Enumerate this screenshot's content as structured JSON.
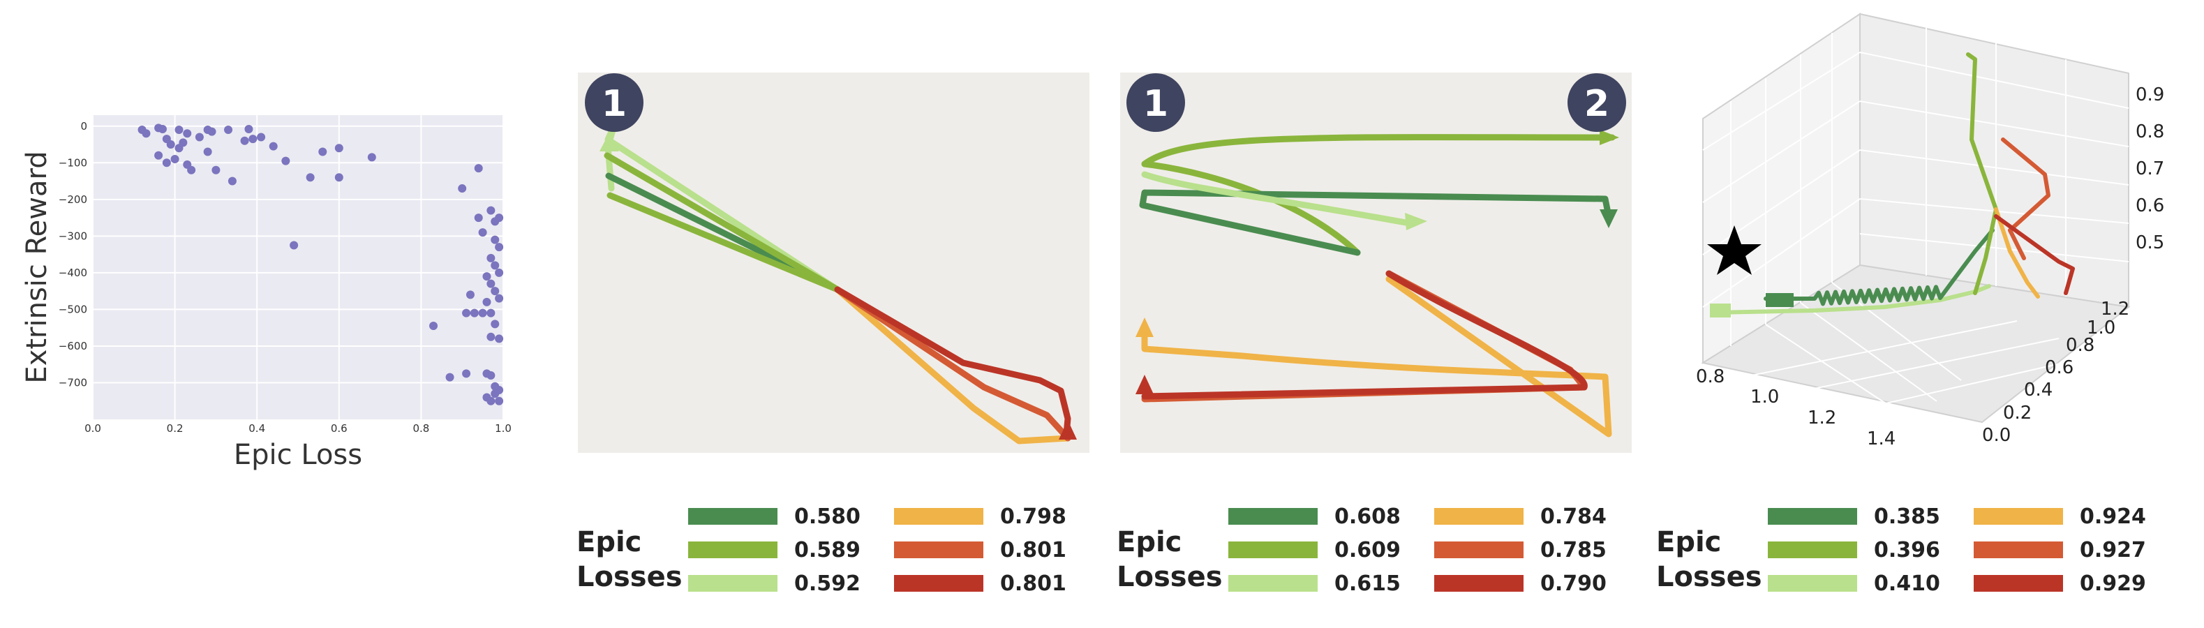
{
  "colors": {
    "plot_bg": "#eaeaf2",
    "panel_bg": "#efede9",
    "scatter_point": "#7b74be",
    "badge": "#3f4460",
    "palette": [
      "#4a8c50",
      "#8ab53c",
      "#b9e08c",
      "#f0b347",
      "#d45a34",
      "#bb3527"
    ]
  },
  "chart_data": [
    {
      "type": "scatter",
      "xlabel": "Epic Loss",
      "ylabel": "Extrinsic Reward",
      "xlim": [
        0.0,
        1.0
      ],
      "ylim": [
        -800,
        30
      ],
      "x_ticks": [
        "0.0",
        "0.2",
        "0.4",
        "0.6",
        "0.8",
        "1.0"
      ],
      "y_ticks": [
        "0",
        "−100",
        "−200",
        "−300",
        "−400",
        "−500",
        "−600",
        "−700"
      ],
      "x_tick_values": [
        0.0,
        0.2,
        0.4,
        0.6,
        0.8,
        1.0
      ],
      "y_tick_values": [
        0,
        -100,
        -200,
        -300,
        -400,
        -500,
        -600,
        -700
      ],
      "grid": true,
      "points": [
        [
          0.12,
          -10
        ],
        [
          0.13,
          -20
        ],
        [
          0.16,
          -5
        ],
        [
          0.17,
          -8
        ],
        [
          0.18,
          -35
        ],
        [
          0.19,
          -50
        ],
        [
          0.21,
          -10
        ],
        [
          0.22,
          -45
        ],
        [
          0.23,
          -20
        ],
        [
          0.21,
          -60
        ],
        [
          0.16,
          -80
        ],
        [
          0.18,
          -100
        ],
        [
          0.2,
          -90
        ],
        [
          0.23,
          -105
        ],
        [
          0.24,
          -120
        ],
        [
          0.26,
          -30
        ],
        [
          0.28,
          -10
        ],
        [
          0.29,
          -15
        ],
        [
          0.28,
          -70
        ],
        [
          0.3,
          -120
        ],
        [
          0.33,
          -10
        ],
        [
          0.34,
          -150
        ],
        [
          0.38,
          -8
        ],
        [
          0.37,
          -40
        ],
        [
          0.39,
          -35
        ],
        [
          0.41,
          -30
        ],
        [
          0.44,
          -55
        ],
        [
          0.47,
          -95
        ],
        [
          0.49,
          -325
        ],
        [
          0.53,
          -140
        ],
        [
          0.56,
          -70
        ],
        [
          0.6,
          -60
        ],
        [
          0.6,
          -140
        ],
        [
          0.68,
          -85
        ],
        [
          0.9,
          -170
        ],
        [
          0.94,
          -115
        ],
        [
          0.94,
          -250
        ],
        [
          0.97,
          -230
        ],
        [
          0.98,
          -260
        ],
        [
          0.99,
          -250
        ],
        [
          0.95,
          -290
        ],
        [
          0.98,
          -310
        ],
        [
          0.99,
          -330
        ],
        [
          0.97,
          -360
        ],
        [
          0.98,
          -380
        ],
        [
          0.99,
          -400
        ],
        [
          0.96,
          -410
        ],
        [
          0.97,
          -430
        ],
        [
          0.98,
          -450
        ],
        [
          0.99,
          -470
        ],
        [
          0.92,
          -460
        ],
        [
          0.96,
          -480
        ],
        [
          0.97,
          -510
        ],
        [
          0.95,
          -510
        ],
        [
          0.91,
          -510
        ],
        [
          0.93,
          -510
        ],
        [
          0.98,
          -540
        ],
        [
          0.97,
          -575
        ],
        [
          0.99,
          -580
        ],
        [
          0.83,
          -545
        ],
        [
          0.87,
          -685
        ],
        [
          0.91,
          -675
        ],
        [
          0.96,
          -675
        ],
        [
          0.97,
          -680
        ],
        [
          0.98,
          -710
        ],
        [
          0.99,
          -720
        ],
        [
          0.96,
          -740
        ],
        [
          0.97,
          -750
        ],
        [
          0.99,
          -750
        ],
        [
          0.98,
          -730
        ]
      ]
    },
    {
      "type": "line",
      "panel": "trajectories-panel-1",
      "badges": [
        "1"
      ],
      "legend_title": [
        "Epic",
        "Losses"
      ],
      "series": [
        {
          "color": "#4a8c50",
          "value_label": "0.580",
          "path": [
            [
              0.06,
              0.27
            ],
            [
              0.05,
              0.1
            ],
            [
              0.1,
              0.1
            ]
          ]
        },
        {
          "color": "#8ab53c",
          "value_label": "0.589",
          "path": [
            [
              0.07,
              0.22
            ],
            [
              0.3,
              0.47
            ],
            [
              0.05,
              0.18
            ]
          ]
        },
        {
          "color": "#b9e08c",
          "value_label": "0.592",
          "path": [
            [
              0.06,
              0.31
            ],
            [
              0.05,
              0.1
            ],
            [
              0.05,
              0.15
            ]
          ]
        },
        {
          "color": "#f0b347",
          "value_label": "0.798",
          "path": [
            [
              0.51,
              0.57
            ],
            [
              0.88,
              0.96
            ],
            [
              0.97,
              0.96
            ]
          ]
        },
        {
          "color": "#d45a34",
          "value_label": "0.801",
          "path": [
            [
              0.51,
              0.57
            ],
            [
              0.96,
              0.92
            ],
            [
              0.94,
              0.85
            ]
          ]
        },
        {
          "color": "#bb3527",
          "value_label": "0.801",
          "path": [
            [
              0.51,
              0.57
            ],
            [
              0.93,
              0.82
            ],
            [
              0.96,
              0.94
            ]
          ]
        }
      ]
    },
    {
      "type": "line",
      "panel": "trajectories-panel-2",
      "badges": [
        "1",
        "2"
      ],
      "legend_title": [
        "Epic",
        "Losses"
      ],
      "series": [
        {
          "color": "#4a8c50",
          "value_label": "0.608",
          "path": [
            [
              0.04,
              0.31
            ],
            [
              0.96,
              0.33
            ]
          ]
        },
        {
          "color": "#8ab53c",
          "value_label": "0.609",
          "path": [
            [
              0.04,
              0.25
            ],
            [
              0.97,
              0.17
            ]
          ]
        },
        {
          "color": "#b9e08c",
          "value_label": "0.615",
          "path": [
            [
              0.04,
              0.29
            ],
            [
              0.6,
              0.4
            ]
          ]
        },
        {
          "color": "#f0b347",
          "value_label": "0.784",
          "path": [
            [
              0.04,
              0.73
            ],
            [
              0.96,
              0.95
            ]
          ]
        },
        {
          "color": "#d45a34",
          "value_label": "0.785",
          "path": [
            [
              0.53,
              0.53
            ],
            [
              0.04,
              0.86
            ]
          ]
        },
        {
          "color": "#bb3527",
          "value_label": "0.790",
          "path": [
            [
              0.53,
              0.53
            ],
            [
              0.04,
              0.86
            ]
          ]
        }
      ]
    },
    {
      "type": "line",
      "panel": "trajectories-3d",
      "legend_title": [
        "Epic",
        "Losses"
      ],
      "x_ticks": [
        "0.8",
        "1.0",
        "1.2",
        "1.4"
      ],
      "y_ticks": [
        "0.0",
        "0.2",
        "0.4",
        "0.6",
        "0.8",
        "1.0",
        "1.2"
      ],
      "z_ticks": [
        "0.5",
        "0.6",
        "0.7",
        "0.8",
        "0.9"
      ],
      "series": [
        {
          "color": "#4a8c50",
          "value_label": "0.385"
        },
        {
          "color": "#8ab53c",
          "value_label": "0.396"
        },
        {
          "color": "#b9e08c",
          "value_label": "0.410"
        },
        {
          "color": "#f0b347",
          "value_label": "0.924"
        },
        {
          "color": "#d45a34",
          "value_label": "0.927"
        },
        {
          "color": "#bb3527",
          "value_label": "0.929"
        }
      ]
    }
  ]
}
